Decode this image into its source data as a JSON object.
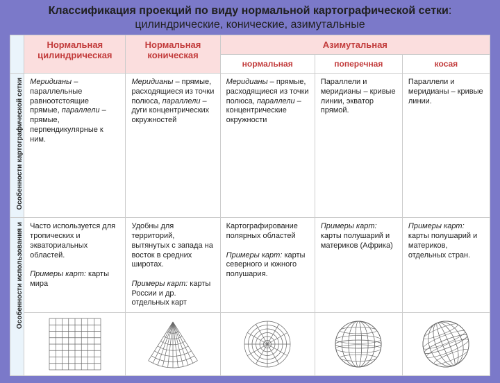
{
  "title": {
    "bold": "Классификация проекций по виду нормальной картографической сетки",
    "rest": ": цилиндрические, конические, азимутальные"
  },
  "headers": {
    "col1": "Нормальная цилиндрическая",
    "col2": "Нормальная коническая",
    "group": "Азимутальная",
    "sub1": "нормальная",
    "sub2": "поперечная",
    "sub3": "косая"
  },
  "sideLabels": {
    "row1": "Особенности картографической сетки",
    "row2": "Особенности использования и"
  },
  "row1": {
    "c1": {
      "em": "Меридианы",
      "t1": " – параллельные равноотстоящие прямые, ",
      "em2": "параллели",
      "t2": " – прямые, перпендикулярные к ним."
    },
    "c2": {
      "em": "Меридианы",
      "t1": " – прямые, расходящиеся из точки полюса, ",
      "em2": "параллели",
      "t2": " – дуги концентрических окружностей"
    },
    "c3": {
      "em": "Меридианы",
      "t1": " – прямые, расходящиеся из точки полюса, ",
      "em2": "параллели",
      "t2": " – концентрические окружности"
    },
    "c4": "Параллели и меридианы – кривые линии, экватор прямой.",
    "c5": "Параллели и меридианы – кривые линии."
  },
  "row2": {
    "c1": {
      "t1": "Часто используется для тропических и экваториальных областей.",
      "em": "Примеры карт:",
      "t2": " карты мира"
    },
    "c2": {
      "t1": "Удобны для территорий, вытянутых с запада на восток в средних широтах.",
      "em": "Примеры карт:",
      "t2": " карты России и др. отдельных карт"
    },
    "c3": {
      "t1": "Картографирование полярных областей",
      "em": "Примеры карт:",
      "t2": " карты северного и южного полушария."
    },
    "c4": {
      "em": "Примеры карт:",
      "t2": " карты полушарий и материков (Африка)"
    },
    "c5": {
      "em": "Примеры карт:",
      "t2": " карты полушарий и материков, отдельных стран."
    }
  },
  "colors": {
    "page_bg": "#7b79c9",
    "header_bg": "#fbdede",
    "header_fg": "#c23b3b",
    "side_bg": "#eaf4fb",
    "border": "#cccccc",
    "diagram_stroke": "#666666"
  },
  "diagrams": {
    "cylindrical": {
      "cols": 8,
      "rows": 8,
      "size": 76
    },
    "conic": {
      "meridians": 11,
      "arcs": 7,
      "width": 120,
      "height": 76
    },
    "azimuthal_normal": {
      "rings": 6,
      "spokes": 12,
      "size": 70
    },
    "azimuthal_transverse": {
      "size": 70,
      "lats": 5,
      "lons": 7
    },
    "azimuthal_oblique": {
      "size": 70,
      "lats": 5,
      "lons": 7
    }
  }
}
